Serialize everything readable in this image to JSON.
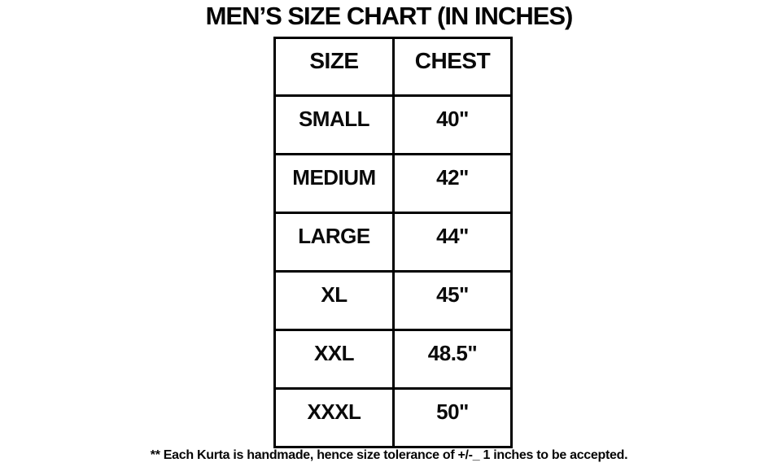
{
  "title": "MEN’S SIZE CHART (IN INCHES)",
  "footnote": "** Each Kurta is handmade, hence size tolerance of +/-_ 1 inches to be accepted.",
  "chart_data": {
    "type": "table",
    "title": "MEN’S SIZE CHART (IN INCHES)",
    "columns": [
      "SIZE",
      "CHEST"
    ],
    "rows": [
      [
        "SMALL",
        "40\""
      ],
      [
        "MEDIUM",
        "42\""
      ],
      [
        "LARGE",
        "44\""
      ],
      [
        "XL",
        "45\""
      ],
      [
        "XXL",
        "48.5\""
      ],
      [
        "XXXL",
        "50\""
      ]
    ],
    "unit": "inches",
    "border_color": "#000000",
    "background_color": "#ffffff"
  }
}
